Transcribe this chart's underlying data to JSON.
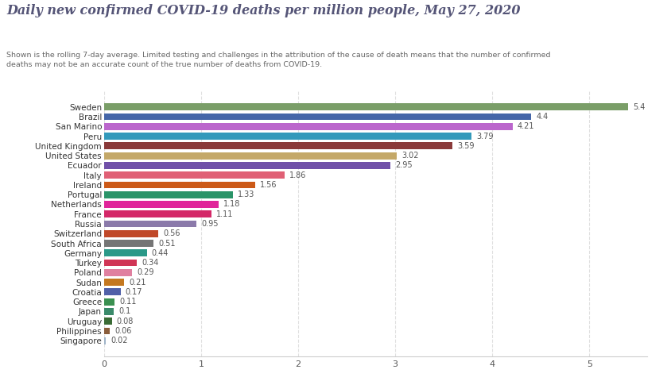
{
  "title": "Daily new confirmed COVID-19 deaths per million people, May 27, 2020",
  "subtitle": "Shown is the rolling 7-day average. Limited testing and challenges in the attribution of the cause of death means that the number of confirmed\ndeaths may not be an accurate count of the true number of deaths from COVID-19.",
  "countries": [
    "Singapore",
    "Philippines",
    "Uruguay",
    "Japan",
    "Greece",
    "Croatia",
    "Sudan",
    "Poland",
    "Turkey",
    "Germany",
    "South Africa",
    "Switzerland",
    "Russia",
    "France",
    "Netherlands",
    "Portugal",
    "Ireland",
    "Italy",
    "Ecuador",
    "United States",
    "United Kingdom",
    "Peru",
    "San Marino",
    "Brazil",
    "Sweden"
  ],
  "values": [
    0.02,
    0.06,
    0.08,
    0.1,
    0.11,
    0.17,
    0.21,
    0.29,
    0.34,
    0.44,
    0.51,
    0.56,
    0.95,
    1.11,
    1.18,
    1.33,
    1.56,
    1.86,
    2.95,
    3.02,
    3.59,
    3.79,
    4.21,
    4.4,
    5.4
  ],
  "colors": [
    "#a0b4c8",
    "#8b5e3c",
    "#3a6b35",
    "#3a8a6a",
    "#3a9050",
    "#5060a8",
    "#c47820",
    "#e080a0",
    "#d03555",
    "#2a9988",
    "#757575",
    "#c04828",
    "#8b7aaa",
    "#d42868",
    "#e0259a",
    "#2a9468",
    "#cc5a18",
    "#e06075",
    "#7050a8",
    "#c4a868",
    "#8a3a3a",
    "#3399bb",
    "#bb66cc",
    "#4466a8",
    "#7a9e68"
  ],
  "xlim": [
    0,
    5.6
  ],
  "xticks": [
    0,
    1,
    2,
    3,
    4,
    5
  ],
  "title_color": "#555577",
  "subtitle_color": "#666666",
  "bar_height": 0.72,
  "value_label_color": "#555555",
  "grid_color": "#e0e0e0",
  "title_fontsize": 11.5,
  "subtitle_fontsize": 6.8,
  "label_fontsize": 7.5,
  "tick_fontsize": 8,
  "value_fontsize": 7
}
